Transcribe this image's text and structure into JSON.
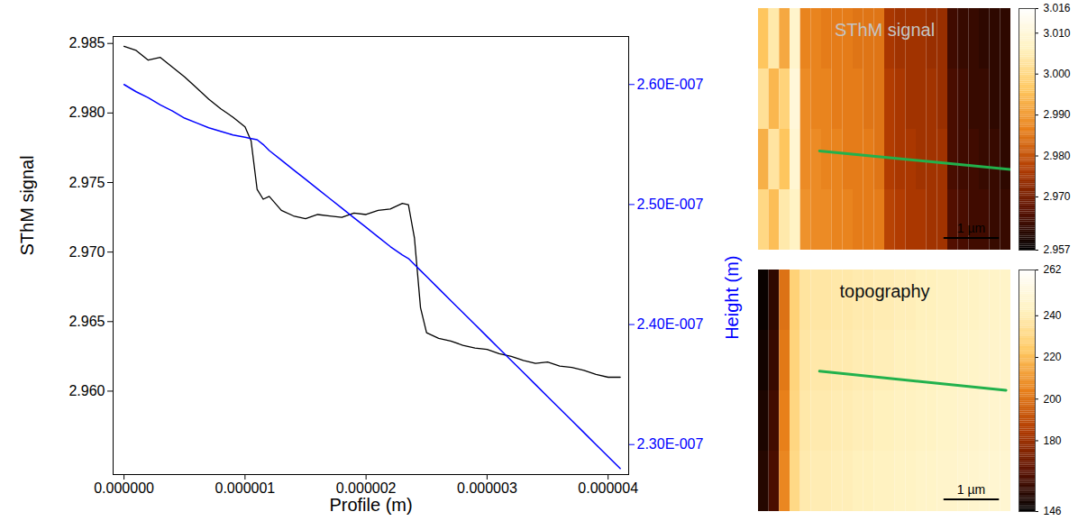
{
  "chart_data": [
    {
      "type": "line",
      "x_label": "Profile (m)",
      "y_label": "SThM signal",
      "y2_label": "Height (m)",
      "x": [
        0,
        1e-07,
        2e-07,
        3e-07,
        4e-07,
        5e-07,
        6e-07,
        7e-07,
        8e-07,
        9e-07,
        1e-06,
        1.05e-06,
        1.1e-06,
        1.15e-06,
        1.2e-06,
        1.3e-06,
        1.4e-06,
        1.5e-06,
        1.6e-06,
        1.7e-06,
        1.8e-06,
        1.9e-06,
        2e-06,
        2.1e-06,
        2.2e-06,
        2.3e-06,
        2.35e-06,
        2.4e-06,
        2.45e-06,
        2.5e-06,
        2.6e-06,
        2.7e-06,
        2.8e-06,
        2.9e-06,
        3e-06,
        3.1e-06,
        3.2e-06,
        3.3e-06,
        3.4e-06,
        3.5e-06,
        3.6e-06,
        3.7e-06,
        3.8e-06,
        3.9e-06,
        4e-06,
        4.1e-06
      ],
      "series": [
        {
          "name": "SThM signal",
          "color": "#000000",
          "values": [
            2.9848,
            2.9845,
            2.9838,
            2.984,
            2.9833,
            2.9826,
            2.9818,
            2.981,
            2.9803,
            2.9797,
            2.979,
            2.978,
            2.9745,
            2.9738,
            2.974,
            2.973,
            2.9726,
            2.9724,
            2.9727,
            2.9726,
            2.9725,
            2.9728,
            2.9727,
            2.973,
            2.9731,
            2.9735,
            2.9734,
            2.971,
            2.966,
            2.9642,
            2.9638,
            2.9636,
            2.9633,
            2.9631,
            2.963,
            2.9627,
            2.9625,
            2.9622,
            2.962,
            2.9621,
            2.9618,
            2.9617,
            2.9615,
            2.9612,
            2.961,
            2.961
          ]
        },
        {
          "name": "Height (m)",
          "color": "#0000ff",
          "axis": "y2",
          "values": [
            2.6e-07,
            2.594e-07,
            2.589e-07,
            2.583e-07,
            2.578e-07,
            2.572e-07,
            2.568e-07,
            2.564e-07,
            2.561e-07,
            2.558e-07,
            2.556e-07,
            2.555e-07,
            2.554e-07,
            2.55e-07,
            2.545e-07,
            2.537e-07,
            2.529e-07,
            2.521e-07,
            2.513e-07,
            2.505e-07,
            2.497e-07,
            2.489e-07,
            2.481e-07,
            2.473e-07,
            2.465e-07,
            2.458e-07,
            2.455e-07,
            2.45e-07,
            2.445e-07,
            2.44e-07,
            2.43e-07,
            2.42e-07,
            2.41e-07,
            2.4e-07,
            2.39e-07,
            2.38e-07,
            2.37e-07,
            2.36e-07,
            2.35e-07,
            2.34e-07,
            2.33e-07,
            2.32e-07,
            2.31e-07,
            2.3e-07,
            2.29e-07,
            2.28e-07
          ]
        }
      ],
      "xlim": [
        -9e-08,
        4.17e-06
      ],
      "xticks": [
        {
          "value": 0,
          "label": "0.000000"
        },
        {
          "value": 1e-06,
          "label": "0.000001"
        },
        {
          "value": 2e-06,
          "label": "0.000002"
        },
        {
          "value": 3e-06,
          "label": "0.000003"
        },
        {
          "value": 4e-06,
          "label": "0.000004"
        }
      ],
      "ylim": [
        2.954,
        2.9855
      ],
      "yticks": [
        {
          "value": 2.96,
          "label": "2.960"
        },
        2.965,
        {
          "value": 2.97,
          "label": "2.970"
        },
        2.975,
        {
          "value": 2.98,
          "label": "2.980"
        },
        2.985
      ],
      "y2lim": [
        2.275e-07,
        2.64e-07
      ],
      "y2ticks": [
        {
          "value": 2.3e-07,
          "label": "2.30E-007"
        },
        {
          "value": 2.4e-07,
          "label": "2.40E-007"
        },
        {
          "value": 2.5e-07,
          "label": "2.50E-007"
        },
        {
          "value": 2.6e-07,
          "label": "2.60E-007"
        }
      ]
    },
    {
      "type": "heatmap",
      "title": "SThM signal",
      "extent": [
        4.67,
        4.58
      ],
      "cells": [
        [
          2.996,
          3.004,
          2.992,
          3.008,
          2.987,
          2.987,
          2.986,
          2.986,
          2.986,
          2.985,
          2.985,
          2.985,
          2.976,
          2.975,
          2.975,
          2.975,
          2.974,
          2.974,
          2.964,
          2.963,
          2.963,
          2.962,
          2.962,
          2.962
        ],
        [
          3.002,
          2.994,
          2.999,
          3.01,
          2.988,
          2.987,
          2.987,
          2.986,
          2.986,
          2.986,
          2.985,
          2.985,
          2.977,
          2.976,
          2.975,
          2.975,
          2.975,
          2.974,
          2.965,
          2.964,
          2.963,
          2.963,
          2.962,
          2.962
        ],
        [
          2.993,
          3.003,
          2.996,
          3.009,
          2.988,
          2.988,
          2.987,
          2.987,
          2.986,
          2.986,
          2.986,
          2.985,
          2.977,
          2.976,
          2.976,
          2.975,
          2.975,
          2.975,
          2.965,
          2.964,
          2.964,
          2.963,
          2.963,
          2.962
        ],
        [
          3.0,
          2.995,
          3.004,
          3.007,
          2.989,
          2.988,
          2.988,
          2.987,
          2.987,
          2.986,
          2.986,
          2.986,
          2.978,
          2.977,
          2.976,
          2.976,
          2.975,
          2.975,
          2.966,
          2.965,
          2.964,
          2.964,
          2.963,
          2.963
        ]
      ],
      "colorbar_range": [
        2.957,
        3.016
      ],
      "colorbar_ticks": [
        2.957,
        {
          "value": 2.97,
          "label": "2.970"
        },
        {
          "value": 2.98,
          "label": "2.980"
        },
        {
          "value": 2.99,
          "label": "2.990"
        },
        {
          "value": 3,
          "label": "3.000"
        },
        {
          "value": 3.01,
          "label": "3.010"
        },
        3.016
      ],
      "scale_bar": {
        "length": 1,
        "label": "1 µm"
      },
      "profile_line": {
        "x": [
          1.13,
          4.67
        ],
        "y": [
          2.7,
          3.05
        ],
        "color": "#22b14c"
      }
    },
    {
      "type": "heatmap",
      "title": "topography",
      "extent": [
        4.67,
        4.58
      ],
      "cells": [
        [
          148,
          156,
          200,
          228,
          236,
          237,
          237,
          238,
          238,
          239,
          239,
          240,
          240,
          241,
          241,
          242,
          242,
          243,
          243,
          244,
          244,
          245,
          245,
          245
        ],
        [
          150,
          158,
          202,
          229,
          237,
          238,
          238,
          239,
          239,
          240,
          240,
          241,
          241,
          242,
          242,
          243,
          243,
          244,
          244,
          245,
          245,
          246,
          246,
          246
        ],
        [
          152,
          160,
          204,
          230,
          238,
          239,
          239,
          240,
          240,
          241,
          241,
          242,
          242,
          243,
          243,
          244,
          244,
          245,
          245,
          246,
          246,
          247,
          247,
          247
        ],
        [
          154,
          162,
          206,
          231,
          239,
          240,
          240,
          241,
          241,
          242,
          242,
          243,
          243,
          244,
          244,
          245,
          245,
          246,
          246,
          247,
          247,
          248,
          248,
          248
        ]
      ],
      "colorbar_range": [
        146,
        262
      ],
      "colorbar_ticks": [
        146,
        180,
        200,
        220,
        240,
        262
      ],
      "scale_bar": {
        "length": 1,
        "label": "1 µm"
      },
      "profile_line": {
        "x": [
          1.13,
          4.58
        ],
        "y": [
          1.92,
          2.28
        ],
        "color": "#22b14c"
      }
    }
  ]
}
